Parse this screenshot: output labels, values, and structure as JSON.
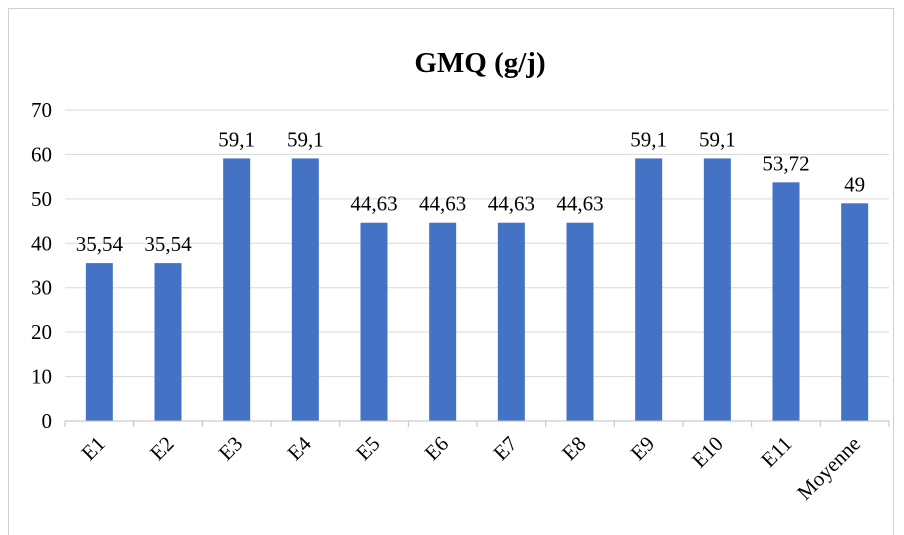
{
  "chart_data": {
    "type": "bar",
    "title": "GMQ (g/j)",
    "xlabel": "",
    "ylabel": "",
    "categories": [
      "E1",
      "E2",
      "E3",
      "E4",
      "E5",
      "E6",
      "E7",
      "E8",
      "E9",
      "E10",
      "E11",
      "Moyenne"
    ],
    "values": [
      35.54,
      35.54,
      59.1,
      59.1,
      44.63,
      44.63,
      44.63,
      44.63,
      59.1,
      59.1,
      53.72,
      49
    ],
    "data_labels": [
      "35,54",
      "35,54",
      "59,1",
      "59,1",
      "44,63",
      "44,63",
      "44,63",
      "44,63",
      "59,1",
      "59,1",
      "53,72",
      "49"
    ],
    "ylim": [
      0,
      70
    ],
    "yticks": [
      0,
      10,
      20,
      30,
      40,
      50,
      60,
      70
    ],
    "grid": true,
    "legend": "none",
    "bar_color": "#4472C4",
    "grid_color": "#d9d9d9"
  }
}
